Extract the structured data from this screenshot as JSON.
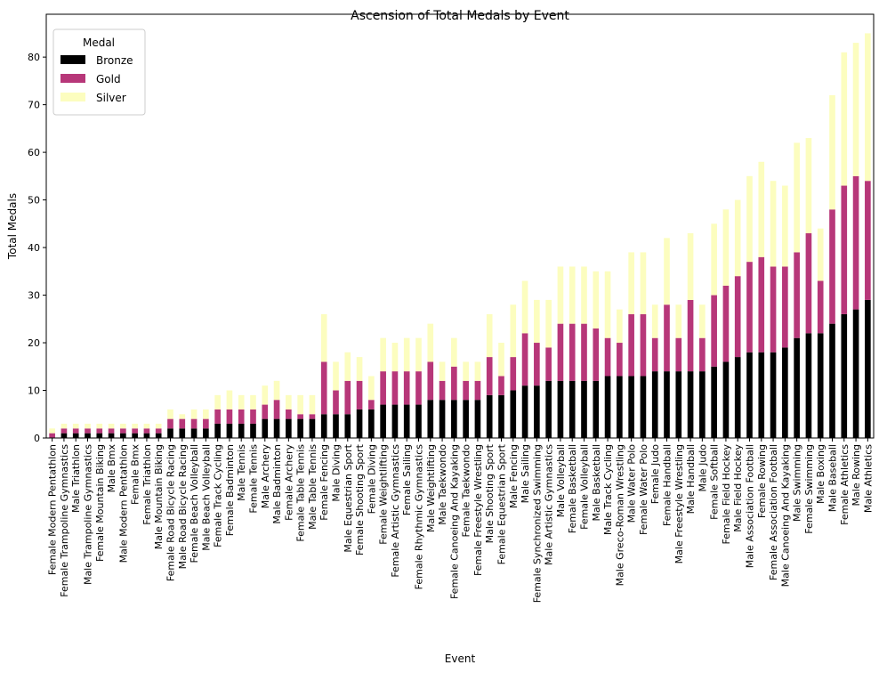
{
  "chart_data": {
    "type": "bar",
    "stacked": true,
    "title": "Ascension of Total Medals by Event",
    "xlabel": "Event",
    "ylabel": "Total Medals",
    "ylim": [
      0,
      89
    ],
    "yticks": [
      0,
      10,
      20,
      30,
      40,
      50,
      60,
      70,
      80
    ],
    "grid": false,
    "legend": {
      "title": "Medal",
      "position": "top-left"
    },
    "categories": [
      "Female Modern Pentathlon",
      "Female Trampoline Gymnastics",
      "Male Triathlon",
      "Male Trampoline Gymnastics",
      "Female Mountain Biking",
      "Male Bmx",
      "Male Modern Pentathlon",
      "Female Bmx",
      "Female Triathlon",
      "Male Mountain Biking",
      "Female Road Bicycle Racing",
      "Male Road Bicycle Racing",
      "Female Beach Volleyball",
      "Male Beach Volleyball",
      "Female Track Cycling",
      "Female Badminton",
      "Male Tennis",
      "Female Tennis",
      "Male Archery",
      "Male Badminton",
      "Female Archery",
      "Female Table Tennis",
      "Male Table Tennis",
      "Female Fencing",
      "Male Diving",
      "Male Equestrian Sport",
      "Female Shooting Sport",
      "Female Diving",
      "Female Weightlifting",
      "Female Artistic Gymnastics",
      "Female Sailing",
      "Female Rhythmic Gymnastics",
      "Male Weightlifting",
      "Male Taekwondo",
      "Female Canoeing And Kayaking",
      "Female Taekwondo",
      "Female Freestyle Wrestling",
      "Male Shooting Sport",
      "Female Equestrian Sport",
      "Male Fencing",
      "Male Sailing",
      "Female Synchronized Swimming",
      "Male Artistic Gymnastics",
      "Male Volleyball",
      "Female Basketball",
      "Female Volleyball",
      "Male Basketball",
      "Male Track Cycling",
      "Male Greco-Roman Wrestling",
      "Male Water Polo",
      "Female Water Polo",
      "Female Judo",
      "Female Handball",
      "Male Freestyle Wrestling",
      "Male Handball",
      "Male Judo",
      "Female Softball",
      "Female Field Hockey",
      "Male Field Hockey",
      "Male Association Football",
      "Female Rowing",
      "Female Association Football",
      "Male Canoeing And Kayaking",
      "Male Swimming",
      "Female Swimming",
      "Male Boxing",
      "Male Baseball",
      "Female Athletics",
      "Male Rowing",
      "Male Athletics"
    ],
    "series": [
      {
        "name": "Bronze",
        "color": "#000000",
        "values": [
          0,
          1,
          1,
          1,
          1,
          1,
          1,
          1,
          1,
          1,
          2,
          2,
          2,
          2,
          3,
          3,
          3,
          3,
          4,
          4,
          4,
          4,
          4,
          5,
          5,
          5,
          6,
          6,
          7,
          7,
          7,
          7,
          8,
          8,
          8,
          8,
          8,
          9,
          9,
          10,
          11,
          11,
          12,
          12,
          12,
          12,
          12,
          13,
          13,
          13,
          13,
          14,
          14,
          14,
          14,
          14,
          15,
          16,
          17,
          18,
          18,
          18,
          19,
          21,
          22,
          22,
          24,
          26,
          27,
          29
        ]
      },
      {
        "name": "Gold",
        "color": "#b73779",
        "values": [
          1,
          1,
          1,
          1,
          1,
          1,
          1,
          1,
          1,
          1,
          2,
          2,
          2,
          2,
          3,
          3,
          3,
          3,
          3,
          4,
          2,
          1,
          1,
          11,
          5,
          7,
          6,
          2,
          7,
          7,
          7,
          7,
          8,
          4,
          7,
          4,
          4,
          8,
          4,
          7,
          11,
          9,
          7,
          12,
          12,
          12,
          11,
          8,
          7,
          13,
          13,
          7,
          14,
          7,
          15,
          7,
          15,
          16,
          17,
          19,
          20,
          18,
          17,
          18,
          21,
          11,
          24,
          27,
          28,
          25
        ]
      },
      {
        "name": "Silver",
        "color": "#fcfdbf",
        "values": [
          1,
          1,
          1,
          1,
          1,
          1,
          1,
          1,
          1,
          1,
          2,
          1,
          2,
          2,
          3,
          4,
          3,
          3,
          4,
          4,
          3,
          4,
          4,
          10,
          6,
          6,
          5,
          5,
          7,
          6,
          7,
          7,
          8,
          4,
          6,
          4,
          4,
          9,
          7,
          11,
          11,
          9,
          10,
          12,
          12,
          12,
          12,
          14,
          7,
          13,
          13,
          7,
          14,
          7,
          14,
          7,
          15,
          16,
          16,
          18,
          20,
          18,
          17,
          23,
          20,
          11,
          24,
          28,
          28,
          31
        ]
      }
    ]
  }
}
